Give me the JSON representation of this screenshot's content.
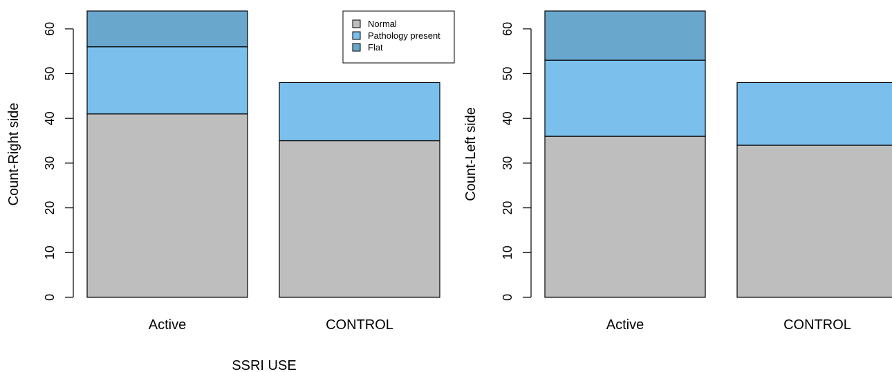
{
  "chart_data": [
    {
      "type": "bar",
      "stacked": true,
      "categories": [
        "Active",
        "CONTROL"
      ],
      "series": [
        {
          "name": "Normal",
          "color": "#bebebe",
          "values": [
            41,
            35
          ]
        },
        {
          "name": "Pathology present",
          "color": "#7bbfec",
          "values": [
            15,
            13
          ]
        },
        {
          "name": "Flat",
          "color": "#69a7cd",
          "values": [
            8,
            0
          ]
        }
      ],
      "ylabel": "Count-Right side",
      "xlabel": "SSRI USE",
      "yticks": [
        0,
        10,
        20,
        30,
        40,
        50,
        60
      ],
      "ylim": [
        0,
        64
      ],
      "legend": "top-right"
    },
    {
      "type": "bar",
      "stacked": true,
      "categories": [
        "Active",
        "CONTROL"
      ],
      "series": [
        {
          "name": "Normal",
          "color": "#bebebe",
          "values": [
            36,
            34
          ]
        },
        {
          "name": "Pathology present",
          "color": "#7bbfec",
          "values": [
            17,
            14
          ]
        },
        {
          "name": "Flat",
          "color": "#69a7cd",
          "values": [
            11,
            0
          ]
        }
      ],
      "ylabel": "Count-Left side",
      "yticks": [
        0,
        10,
        20,
        30,
        40,
        50,
        60
      ],
      "ylim": [
        0,
        64
      ]
    }
  ]
}
